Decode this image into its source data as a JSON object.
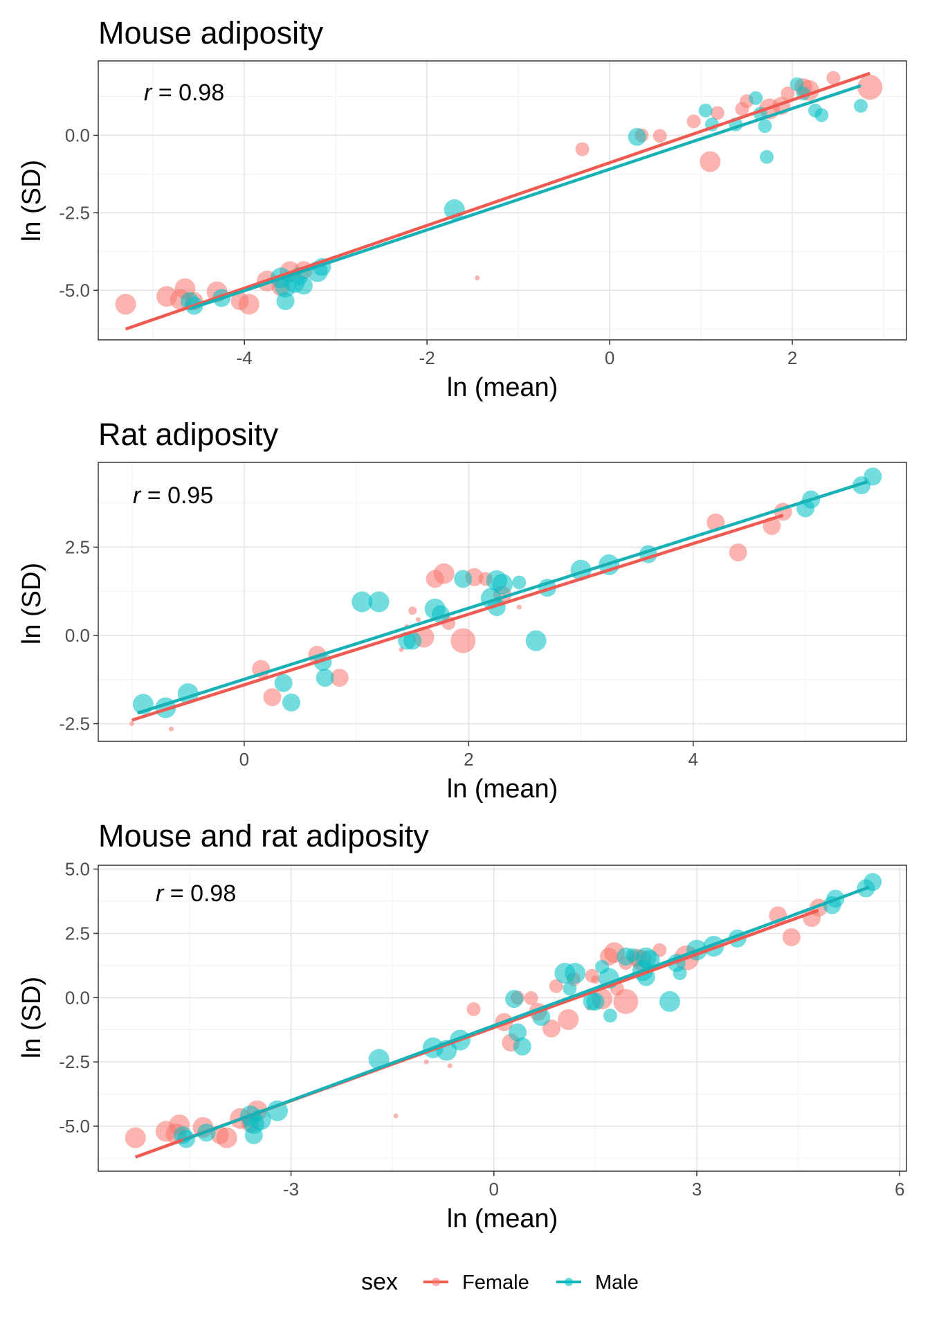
{
  "colors": {
    "Female": "#F8766D",
    "Male": "#00BFC4",
    "Female_line": "#ef5b52",
    "Male_line": "#17b1b6"
  },
  "legend": {
    "title": "sex",
    "items": [
      "Female",
      "Male"
    ]
  },
  "chart_data": [
    {
      "type": "scatter",
      "title": "Mouse adiposity",
      "xlabel": "ln (mean)",
      "ylabel": "ln (SD)",
      "xlim": [
        -5.6,
        3.25
      ],
      "ylim": [
        -6.6,
        2.4
      ],
      "x_ticks": [
        -4,
        -2,
        0,
        2
      ],
      "x_tick_labels": [
        "-4",
        "-2",
        "0",
        "2"
      ],
      "y_ticks": [
        -5,
        -2.5,
        0
      ],
      "y_tick_labels": [
        "-5.0",
        "-2.5",
        "0.0"
      ],
      "annotation": {
        "r_symbol": "r",
        "eq": " = ",
        "value": "0.98"
      },
      "grid": true,
      "series": [
        {
          "name": "Female",
          "points": [
            [
              -5.3,
              -5.45,
              5
            ],
            [
              -4.85,
              -5.2,
              5
            ],
            [
              -4.7,
              -5.3,
              5
            ],
            [
              -4.65,
              -4.95,
              5
            ],
            [
              -4.55,
              -5.35,
              4
            ],
            [
              -4.3,
              -5.05,
              5
            ],
            [
              -4.05,
              -5.35,
              4
            ],
            [
              -3.95,
              -5.45,
              5
            ],
            [
              -3.75,
              -4.7,
              5
            ],
            [
              -3.6,
              -4.9,
              4
            ],
            [
              -3.5,
              -4.4,
              5
            ],
            [
              -3.35,
              -4.35,
              4
            ],
            [
              -1.45,
              -4.6,
              1
            ],
            [
              -0.3,
              -0.45,
              3
            ],
            [
              0.35,
              0.0,
              3
            ],
            [
              0.55,
              -0.02,
              3
            ],
            [
              0.92,
              0.45,
              3
            ],
            [
              1.1,
              -0.85,
              5
            ],
            [
              1.18,
              0.72,
              3
            ],
            [
              1.45,
              0.85,
              3
            ],
            [
              1.5,
              1.1,
              3
            ],
            [
              1.75,
              0.85,
              5
            ],
            [
              1.88,
              0.95,
              4
            ],
            [
              1.95,
              1.35,
              3
            ],
            [
              2.12,
              1.55,
              4
            ],
            [
              2.18,
              1.45,
              5
            ],
            [
              2.45,
              1.85,
              3
            ],
            [
              2.85,
              1.55,
              6
            ]
          ]
        },
        {
          "name": "Male",
          "points": [
            [
              -4.6,
              -5.35,
              4
            ],
            [
              -4.55,
              -5.5,
              4
            ],
            [
              -4.25,
              -5.25,
              4
            ],
            [
              -3.6,
              -4.6,
              5
            ],
            [
              -3.55,
              -4.9,
              5
            ],
            [
              -3.55,
              -5.35,
              4
            ],
            [
              -3.45,
              -4.75,
              5
            ],
            [
              -3.4,
              -4.55,
              4
            ],
            [
              -3.35,
              -4.85,
              4
            ],
            [
              -3.2,
              -4.4,
              5
            ],
            [
              -3.15,
              -4.25,
              4
            ],
            [
              -1.7,
              -2.4,
              5
            ],
            [
              0.3,
              -0.05,
              4
            ],
            [
              1.05,
              0.8,
              3
            ],
            [
              1.12,
              0.35,
              3
            ],
            [
              1.38,
              0.35,
              3
            ],
            [
              1.6,
              1.2,
              3
            ],
            [
              1.65,
              0.7,
              3
            ],
            [
              1.7,
              0.3,
              3
            ],
            [
              1.72,
              -0.7,
              3
            ],
            [
              2.05,
              1.65,
              3
            ],
            [
              2.12,
              1.35,
              3
            ],
            [
              2.25,
              0.8,
              3
            ],
            [
              2.32,
              0.65,
              3
            ],
            [
              2.75,
              0.95,
              3
            ]
          ]
        }
      ],
      "fits": [
        {
          "name": "Female",
          "x": [
            -5.3,
            2.85
          ],
          "y": [
            -6.25,
            2.0
          ]
        },
        {
          "name": "Male",
          "x": [
            -4.6,
            2.75
          ],
          "y": [
            -5.6,
            1.6
          ]
        }
      ]
    },
    {
      "type": "scatter",
      "title": "Rat adiposity",
      "xlabel": "ln (mean)",
      "ylabel": "ln (SD)",
      "xlim": [
        -1.3,
        5.9
      ],
      "ylim": [
        -3.0,
        4.9
      ],
      "x_ticks": [
        0,
        2,
        4
      ],
      "x_tick_labels": [
        "0",
        "2",
        "4"
      ],
      "y_ticks": [
        -2.5,
        0,
        2.5
      ],
      "y_tick_labels": [
        "-2.5",
        "0.0",
        "2.5"
      ],
      "annotation": {
        "r_symbol": "r",
        "eq": " = ",
        "value": "0.95"
      },
      "grid": true,
      "series": [
        {
          "name": "Female",
          "points": [
            [
              -1.0,
              -2.5,
              1
            ],
            [
              -0.65,
              -2.65,
              1
            ],
            [
              0.15,
              -0.95,
              4
            ],
            [
              0.25,
              -1.75,
              4
            ],
            [
              0.65,
              -0.55,
              4
            ],
            [
              0.85,
              -1.2,
              4
            ],
            [
              1.4,
              -0.4,
              1
            ],
            [
              1.45,
              0.25,
              1
            ],
            [
              1.5,
              0.7,
              2
            ],
            [
              1.55,
              0.45,
              1
            ],
            [
              1.6,
              -0.05,
              5
            ],
            [
              1.7,
              1.6,
              4
            ],
            [
              1.78,
              1.75,
              5
            ],
            [
              1.82,
              0.35,
              3
            ],
            [
              1.95,
              -0.15,
              6
            ],
            [
              2.05,
              1.65,
              4
            ],
            [
              2.15,
              1.6,
              3
            ],
            [
              2.3,
              1.15,
              4
            ],
            [
              2.45,
              0.8,
              1
            ],
            [
              4.2,
              3.2,
              4
            ],
            [
              4.4,
              2.35,
              4
            ],
            [
              4.7,
              3.1,
              4
            ],
            [
              4.8,
              3.5,
              4
            ]
          ]
        },
        {
          "name": "Male",
          "points": [
            [
              -0.9,
              -1.95,
              5
            ],
            [
              -0.7,
              -2.05,
              5
            ],
            [
              -0.5,
              -1.65,
              5
            ],
            [
              0.35,
              -1.35,
              4
            ],
            [
              0.42,
              -1.9,
              4
            ],
            [
              0.7,
              -0.75,
              4
            ],
            [
              0.72,
              -1.2,
              4
            ],
            [
              1.05,
              0.95,
              5
            ],
            [
              1.2,
              0.95,
              5
            ],
            [
              1.45,
              -0.15,
              4
            ],
            [
              1.5,
              -0.15,
              4
            ],
            [
              1.7,
              0.75,
              5
            ],
            [
              1.75,
              0.6,
              4
            ],
            [
              1.95,
              1.6,
              4
            ],
            [
              2.2,
              1.05,
              5
            ],
            [
              2.25,
              0.8,
              4
            ],
            [
              2.25,
              1.55,
              5
            ],
            [
              2.3,
              1.45,
              5
            ],
            [
              2.45,
              1.5,
              3
            ],
            [
              2.6,
              -0.15,
              5
            ],
            [
              2.7,
              1.35,
              4
            ],
            [
              3.0,
              1.85,
              5
            ],
            [
              3.25,
              2.0,
              5
            ],
            [
              3.6,
              2.3,
              4
            ],
            [
              5.0,
              3.6,
              4
            ],
            [
              5.05,
              3.85,
              4
            ],
            [
              5.5,
              4.25,
              4
            ],
            [
              5.6,
              4.5,
              4
            ]
          ]
        }
      ],
      "fits": [
        {
          "name": "Female",
          "x": [
            -1.0,
            4.8
          ],
          "y": [
            -2.4,
            3.4
          ]
        },
        {
          "name": "Male",
          "x": [
            -0.95,
            5.55
          ],
          "y": [
            -2.2,
            4.35
          ]
        }
      ]
    },
    {
      "type": "scatter",
      "title": "Mouse and rat adiposity",
      "xlabel": "ln (mean)",
      "ylabel": "ln (SD)",
      "xlim": [
        -5.85,
        6.1
      ],
      "ylim": [
        -6.75,
        5.15
      ],
      "x_ticks": [
        -3,
        0,
        3,
        6
      ],
      "x_tick_labels": [
        "-3",
        "0",
        "3",
        "6"
      ],
      "y_ticks": [
        -5,
        -2.5,
        0,
        2.5,
        5
      ],
      "y_tick_labels": [
        "-5.0",
        "-2.5",
        "0.0",
        "2.5",
        "5.0"
      ],
      "annotation": {
        "r_symbol": "r",
        "eq": " = ",
        "value": "0.98"
      },
      "grid": true,
      "series": [
        {
          "name": "Female",
          "points": [
            [
              -5.3,
              -5.45,
              5
            ],
            [
              -4.85,
              -5.2,
              5
            ],
            [
              -4.7,
              -5.3,
              5
            ],
            [
              -4.65,
              -4.95,
              5
            ],
            [
              -4.3,
              -5.05,
              5
            ],
            [
              -4.05,
              -5.35,
              4
            ],
            [
              -3.95,
              -5.45,
              5
            ],
            [
              -3.75,
              -4.7,
              5
            ],
            [
              -3.6,
              -4.9,
              4
            ],
            [
              -3.5,
              -4.4,
              5
            ],
            [
              -1.45,
              -4.6,
              1
            ],
            [
              -1.0,
              -2.5,
              1
            ],
            [
              -0.65,
              -2.65,
              1
            ],
            [
              -0.3,
              -0.45,
              3
            ],
            [
              0.15,
              -0.95,
              4
            ],
            [
              0.25,
              -1.75,
              4
            ],
            [
              0.35,
              0.0,
              3
            ],
            [
              0.55,
              -0.02,
              3
            ],
            [
              0.65,
              -0.55,
              4
            ],
            [
              0.85,
              -1.2,
              4
            ],
            [
              0.92,
              0.45,
              3
            ],
            [
              1.1,
              -0.85,
              5
            ],
            [
              1.18,
              0.72,
              3
            ],
            [
              1.4,
              -0.4,
              1
            ],
            [
              1.45,
              0.85,
              3
            ],
            [
              1.5,
              0.7,
              2
            ],
            [
              1.6,
              -0.05,
              5
            ],
            [
              1.7,
              1.6,
              4
            ],
            [
              1.78,
              1.75,
              5
            ],
            [
              1.82,
              0.35,
              3
            ],
            [
              1.95,
              -0.15,
              6
            ],
            [
              1.95,
              1.35,
              3
            ],
            [
              2.12,
              1.55,
              4
            ],
            [
              2.18,
              1.45,
              5
            ],
            [
              2.45,
              1.85,
              3
            ],
            [
              2.85,
              1.55,
              6
            ],
            [
              4.2,
              3.2,
              4
            ],
            [
              4.4,
              2.35,
              4
            ],
            [
              4.7,
              3.1,
              4
            ],
            [
              4.8,
              3.5,
              4
            ]
          ]
        },
        {
          "name": "Male",
          "points": [
            [
              -4.6,
              -5.35,
              4
            ],
            [
              -4.55,
              -5.5,
              4
            ],
            [
              -4.25,
              -5.25,
              4
            ],
            [
              -3.6,
              -4.6,
              5
            ],
            [
              -3.55,
              -4.9,
              5
            ],
            [
              -3.55,
              -5.35,
              4
            ],
            [
              -3.45,
              -4.75,
              5
            ],
            [
              -3.2,
              -4.4,
              5
            ],
            [
              -1.7,
              -2.4,
              5
            ],
            [
              -0.9,
              -1.95,
              5
            ],
            [
              -0.7,
              -2.05,
              5
            ],
            [
              -0.5,
              -1.65,
              5
            ],
            [
              0.3,
              -0.05,
              4
            ],
            [
              0.35,
              -1.35,
              4
            ],
            [
              0.42,
              -1.9,
              4
            ],
            [
              0.7,
              -0.75,
              4
            ],
            [
              1.05,
              0.95,
              5
            ],
            [
              1.12,
              0.35,
              3
            ],
            [
              1.2,
              0.95,
              5
            ],
            [
              1.45,
              -0.15,
              4
            ],
            [
              1.5,
              -0.15,
              4
            ],
            [
              1.6,
              1.2,
              3
            ],
            [
              1.7,
              0.75,
              5
            ],
            [
              1.72,
              -0.7,
              3
            ],
            [
              1.95,
              1.6,
              4
            ],
            [
              2.05,
              1.65,
              3
            ],
            [
              2.2,
              1.05,
              5
            ],
            [
              2.25,
              0.8,
              4
            ],
            [
              2.25,
              1.55,
              5
            ],
            [
              2.3,
              1.45,
              5
            ],
            [
              2.6,
              -0.15,
              5
            ],
            [
              2.7,
              1.35,
              4
            ],
            [
              2.75,
              0.95,
              3
            ],
            [
              3.0,
              1.85,
              5
            ],
            [
              3.25,
              2.0,
              5
            ],
            [
              3.6,
              2.3,
              4
            ],
            [
              5.0,
              3.6,
              4
            ],
            [
              5.05,
              3.85,
              4
            ],
            [
              5.5,
              4.25,
              4
            ],
            [
              5.6,
              4.5,
              4
            ]
          ]
        }
      ],
      "fits": [
        {
          "name": "Female",
          "x": [
            -5.3,
            4.8
          ],
          "y": [
            -6.2,
            3.4
          ]
        },
        {
          "name": "Male",
          "x": [
            -4.6,
            5.55
          ],
          "y": [
            -5.55,
            4.3
          ]
        }
      ]
    }
  ]
}
